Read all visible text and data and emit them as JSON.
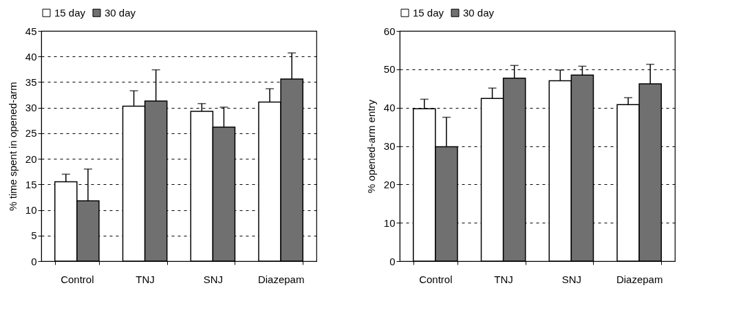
{
  "chart_data": [
    {
      "type": "bar",
      "ylabel": "% time spent in opened-arm",
      "categories": [
        "Control",
        "TNJ",
        "SNJ",
        "Diazepam"
      ],
      "ylim": [
        0,
        45
      ],
      "yticks": [
        0,
        5,
        10,
        15,
        20,
        25,
        30,
        35,
        40,
        45
      ],
      "grid": "y",
      "legend": "top",
      "series": [
        {
          "name": "15 day",
          "color": "#ffffff",
          "values": [
            15.5,
            30.3,
            29.3,
            31.1
          ],
          "errors": [
            [
              15.5,
              17
            ],
            [
              30.3,
              33.3
            ],
            [
              29.3,
              30.8
            ],
            [
              31.1,
              33.7
            ]
          ]
        },
        {
          "name": "30 day",
          "color": "#707070",
          "values": [
            11.8,
            31.3,
            26.2,
            35.6
          ],
          "errors": [
            [
              11.8,
              18
            ],
            [
              31.3,
              37.4
            ],
            [
              26.2,
              30.1
            ],
            [
              35.6,
              40.7
            ]
          ]
        }
      ]
    },
    {
      "type": "bar",
      "ylabel": "% opened-arm entry",
      "categories": [
        "Control",
        "TNJ",
        "SNJ",
        "Diazepam"
      ],
      "ylim": [
        0,
        60
      ],
      "yticks": [
        0,
        10,
        20,
        30,
        40,
        50,
        60
      ],
      "grid": "y",
      "legend": "top",
      "series": [
        {
          "name": "15 day",
          "color": "#ffffff",
          "values": [
            39.7,
            42.4,
            47,
            40.8
          ],
          "errors": [
            [
              39.7,
              42.2
            ],
            [
              42.4,
              45.1
            ],
            [
              47,
              49.8
            ],
            [
              40.8,
              42.6
            ]
          ]
        },
        {
          "name": "30 day",
          "color": "#707070",
          "values": [
            29.8,
            47.7,
            48.5,
            46.2
          ],
          "errors": [
            [
              29.8,
              37.5
            ],
            [
              47.7,
              51
            ],
            [
              48.5,
              50.8
            ],
            [
              46.2,
              51.3
            ]
          ]
        }
      ]
    }
  ]
}
